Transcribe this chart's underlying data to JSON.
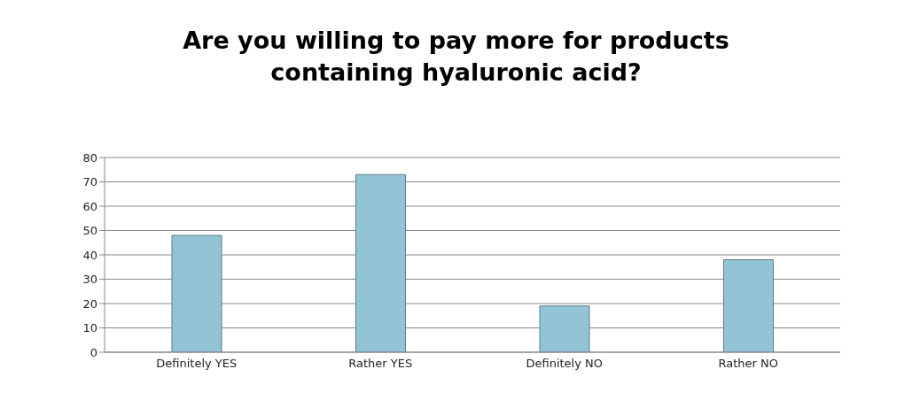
{
  "chart_data": {
    "type": "bar",
    "title": "Are you willing to pay more for products containing hyaluronic acid?",
    "categories": [
      "Definitely YES",
      "Rather YES",
      "Definitely NO",
      "Rather NO"
    ],
    "values": [
      48,
      73,
      19,
      38
    ],
    "color": "#93c4d5",
    "ylim": [
      0,
      80
    ],
    "yticks": [
      0,
      10,
      20,
      30,
      40,
      50,
      60,
      70,
      80
    ],
    "grid": "y"
  }
}
